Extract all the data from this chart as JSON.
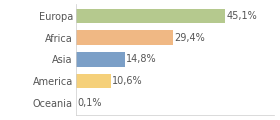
{
  "categories": [
    "Europa",
    "Africa",
    "Asia",
    "America",
    "Oceania"
  ],
  "values": [
    45.1,
    29.4,
    14.8,
    10.6,
    0.1
  ],
  "labels": [
    "45,1%",
    "29,4%",
    "14,8%",
    "10,6%",
    "0,1%"
  ],
  "bar_colors": [
    "#b5c98e",
    "#f0b884",
    "#7b9fc7",
    "#f5d07a",
    "#e8e8e8"
  ],
  "background_color": "#ffffff",
  "text_color": "#555555",
  "label_fontsize": 7.0,
  "tick_fontsize": 7.0,
  "xlim": [
    0,
    60
  ]
}
